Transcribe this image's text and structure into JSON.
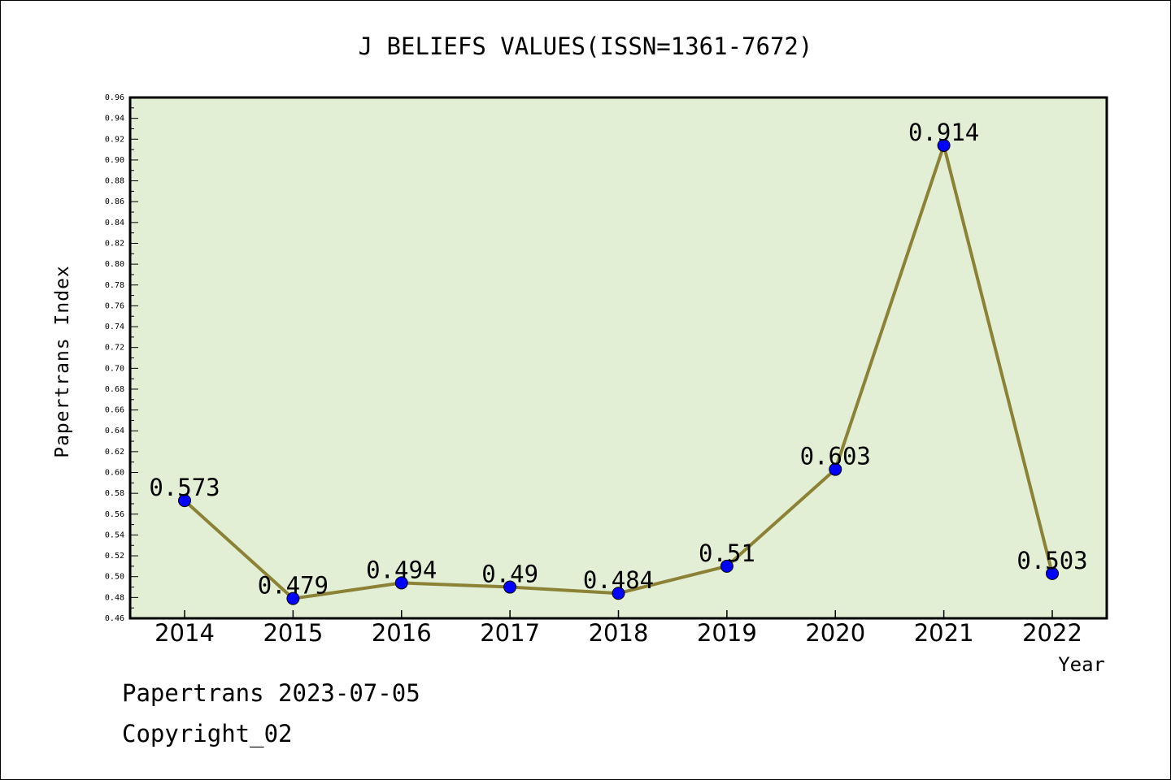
{
  "chart_data": {
    "type": "line",
    "title": "J BELIEFS VALUES(ISSN=1361-7672)",
    "xlabel": "Year",
    "ylabel": "Papertrans Index",
    "categories": [
      "2014",
      "2015",
      "2016",
      "2017",
      "2018",
      "2019",
      "2020",
      "2021",
      "2022"
    ],
    "series": [
      {
        "values": [
          0.573,
          0.479,
          0.494,
          0.49,
          0.484,
          0.51,
          0.603,
          0.914,
          0.503
        ],
        "labels": [
          "0.573",
          "0.479",
          "0.494",
          "0.49",
          "0.484",
          "0.51",
          "0.603",
          "0.914",
          "0.503"
        ]
      }
    ],
    "ylim": [
      0.46,
      0.96
    ],
    "ytick_step": 0.02,
    "grid": false,
    "legend": "none",
    "colors": {
      "plot_background": "#e2efd4",
      "line": "#8b8236",
      "marker": "#0000ff"
    }
  },
  "footer": {
    "date_text": "Papertrans 2023-07-05",
    "copyright_text": "Copyright_02"
  }
}
